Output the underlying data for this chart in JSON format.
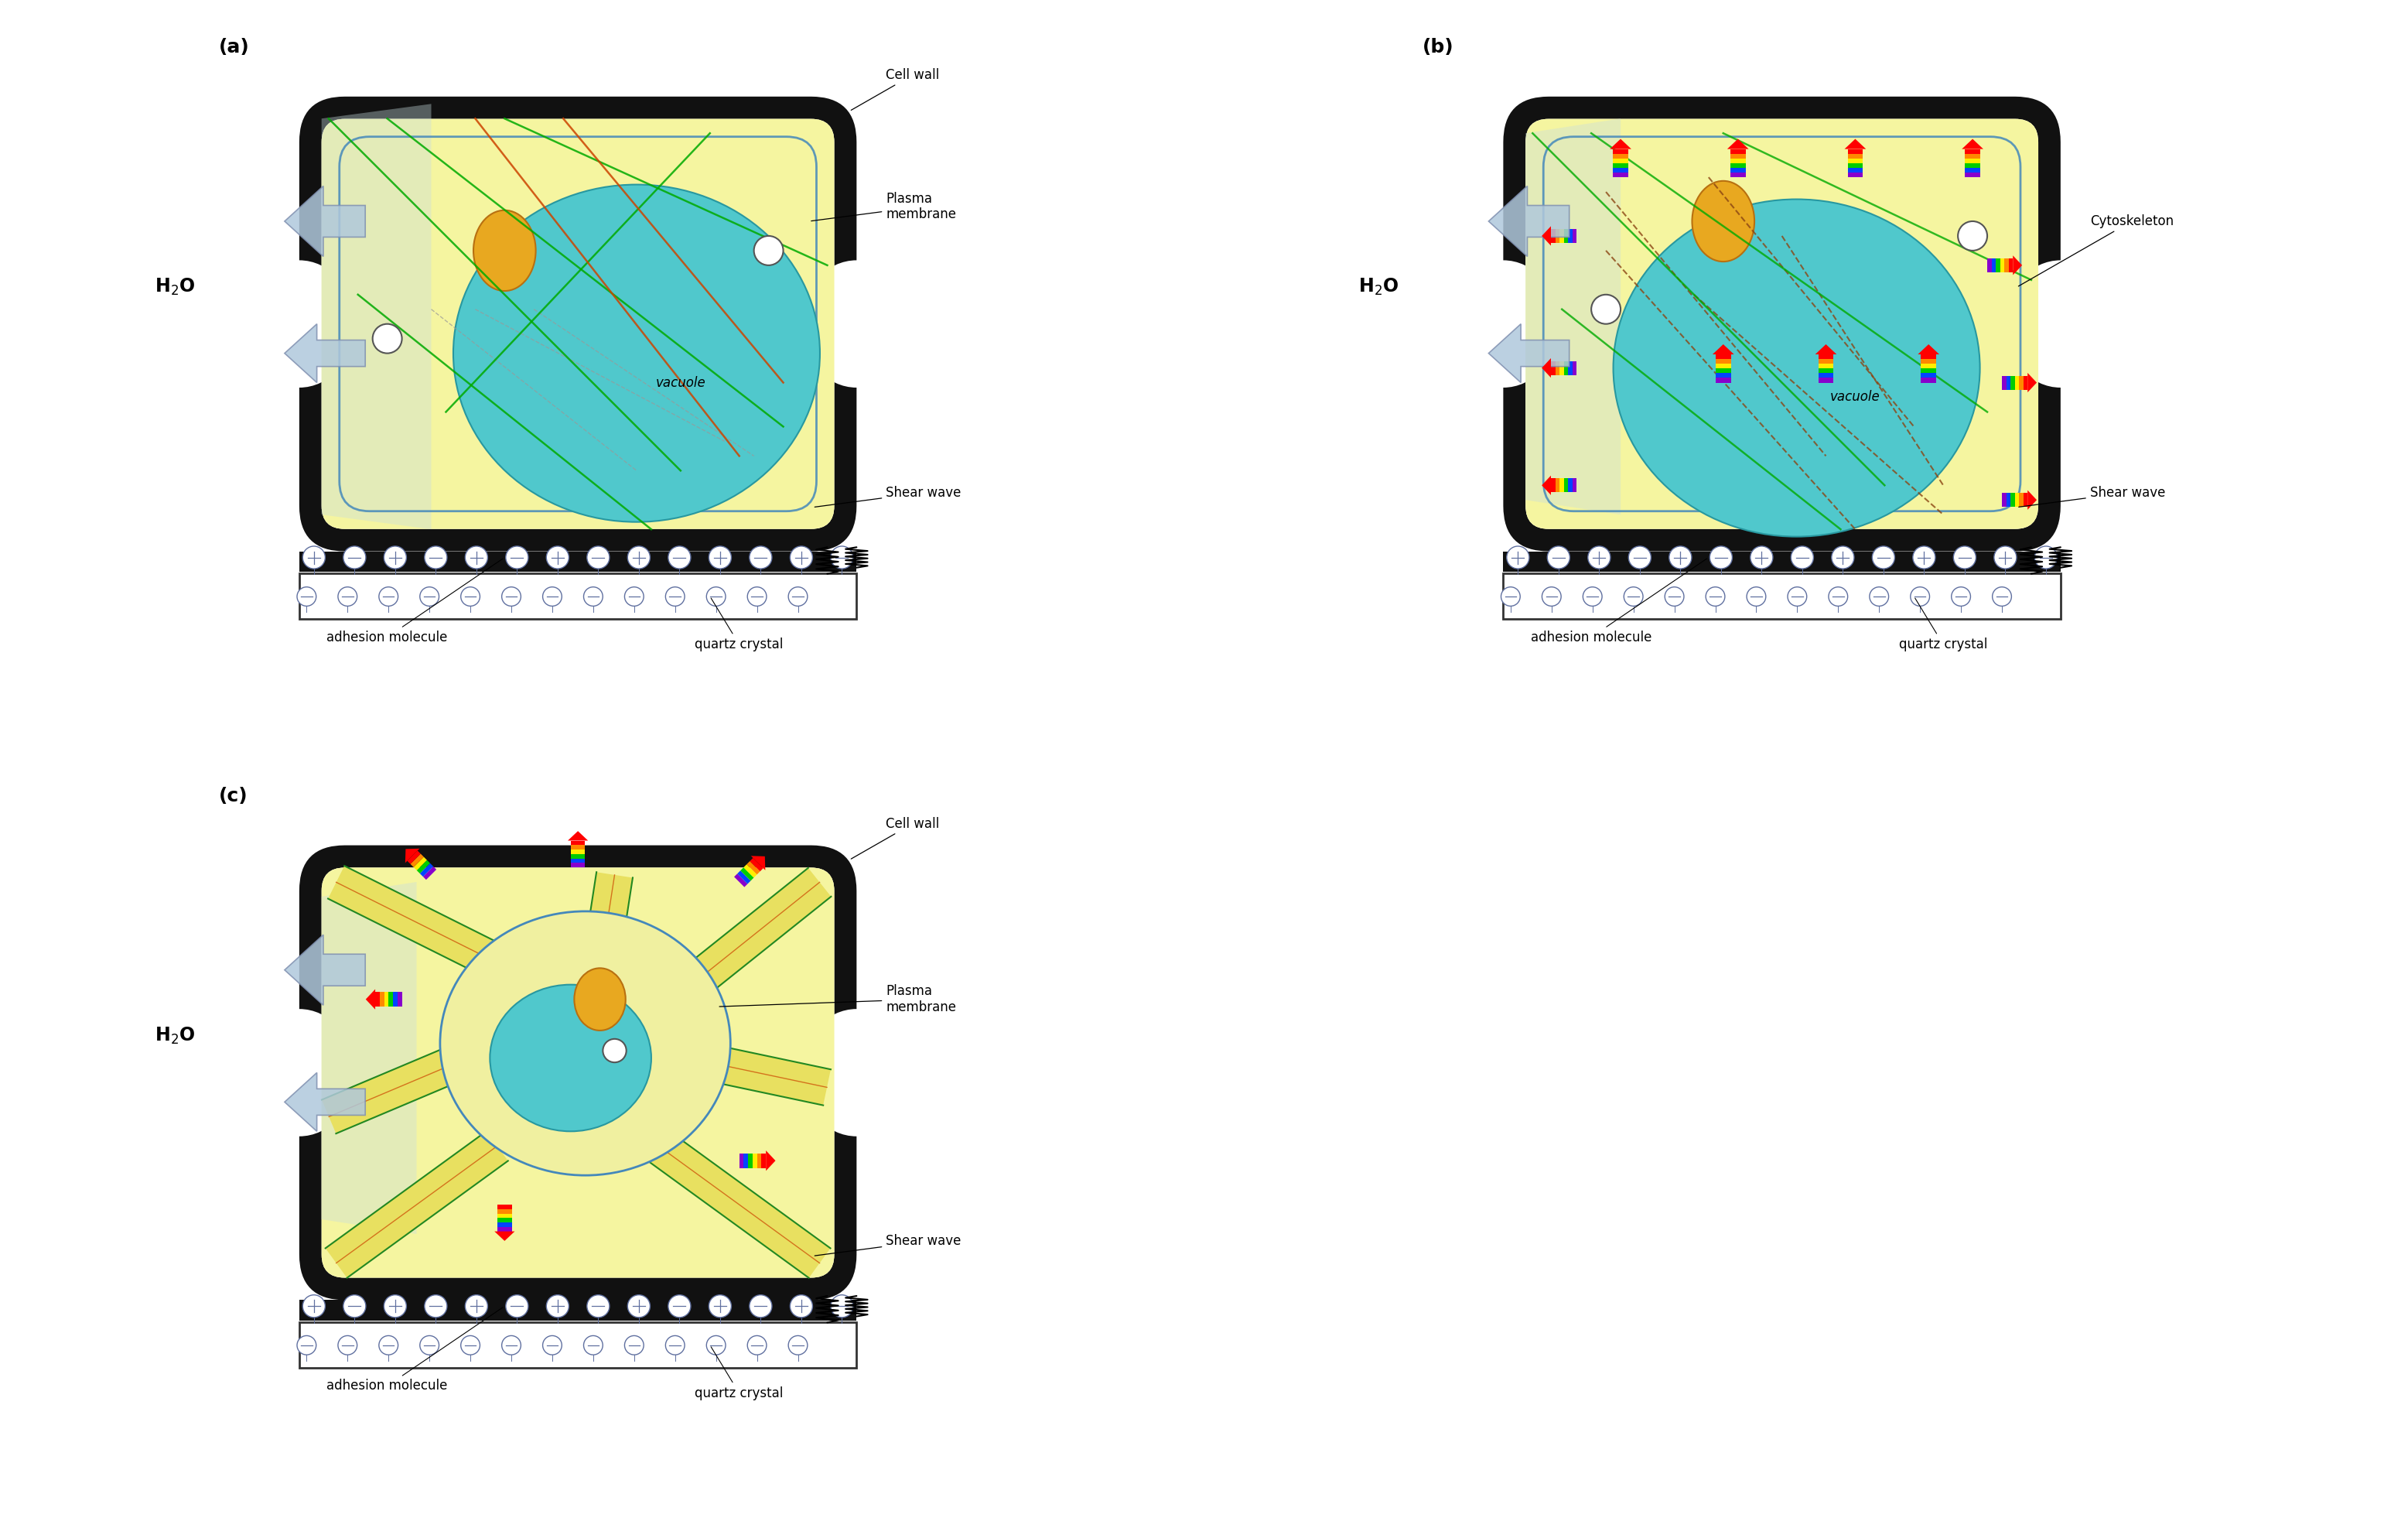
{
  "fig_width": 31.13,
  "fig_height": 19.75,
  "bg_color": "#ffffff",
  "colors": {
    "cell_wall": "#111111",
    "cytoplasm": "#f5f5a0",
    "vacuole": "#50c8c8",
    "nucleus": "#e8a820",
    "green_line": "#00aa00",
    "red_line": "#cc4400",
    "brown_dashed": "#8B4513",
    "water_arrow": "#a8c4d8",
    "electrode": "#8090a8",
    "quartz_fill": "#ffffff",
    "blue_shade": "#c8dce8",
    "plasma_mem_border": "#5588aa"
  },
  "panels": {
    "a": {
      "label": "(a)",
      "annotations": [
        "Cell wall",
        "Plasma\nmembrane",
        "Shear wave",
        "vacuole",
        "adhesion molecule",
        "quartz crystal"
      ]
    },
    "b": {
      "label": "(b)",
      "annotations": [
        "Cytoskeleton",
        "Shear wave",
        "vacuole",
        "adhesion molecule",
        "quartz crystal"
      ]
    },
    "c": {
      "label": "(c)",
      "annotations": [
        "Cell wall",
        "Plasma\nmembrane",
        "Shear wave",
        "adhesion molecule",
        "quartz crystal"
      ]
    }
  }
}
